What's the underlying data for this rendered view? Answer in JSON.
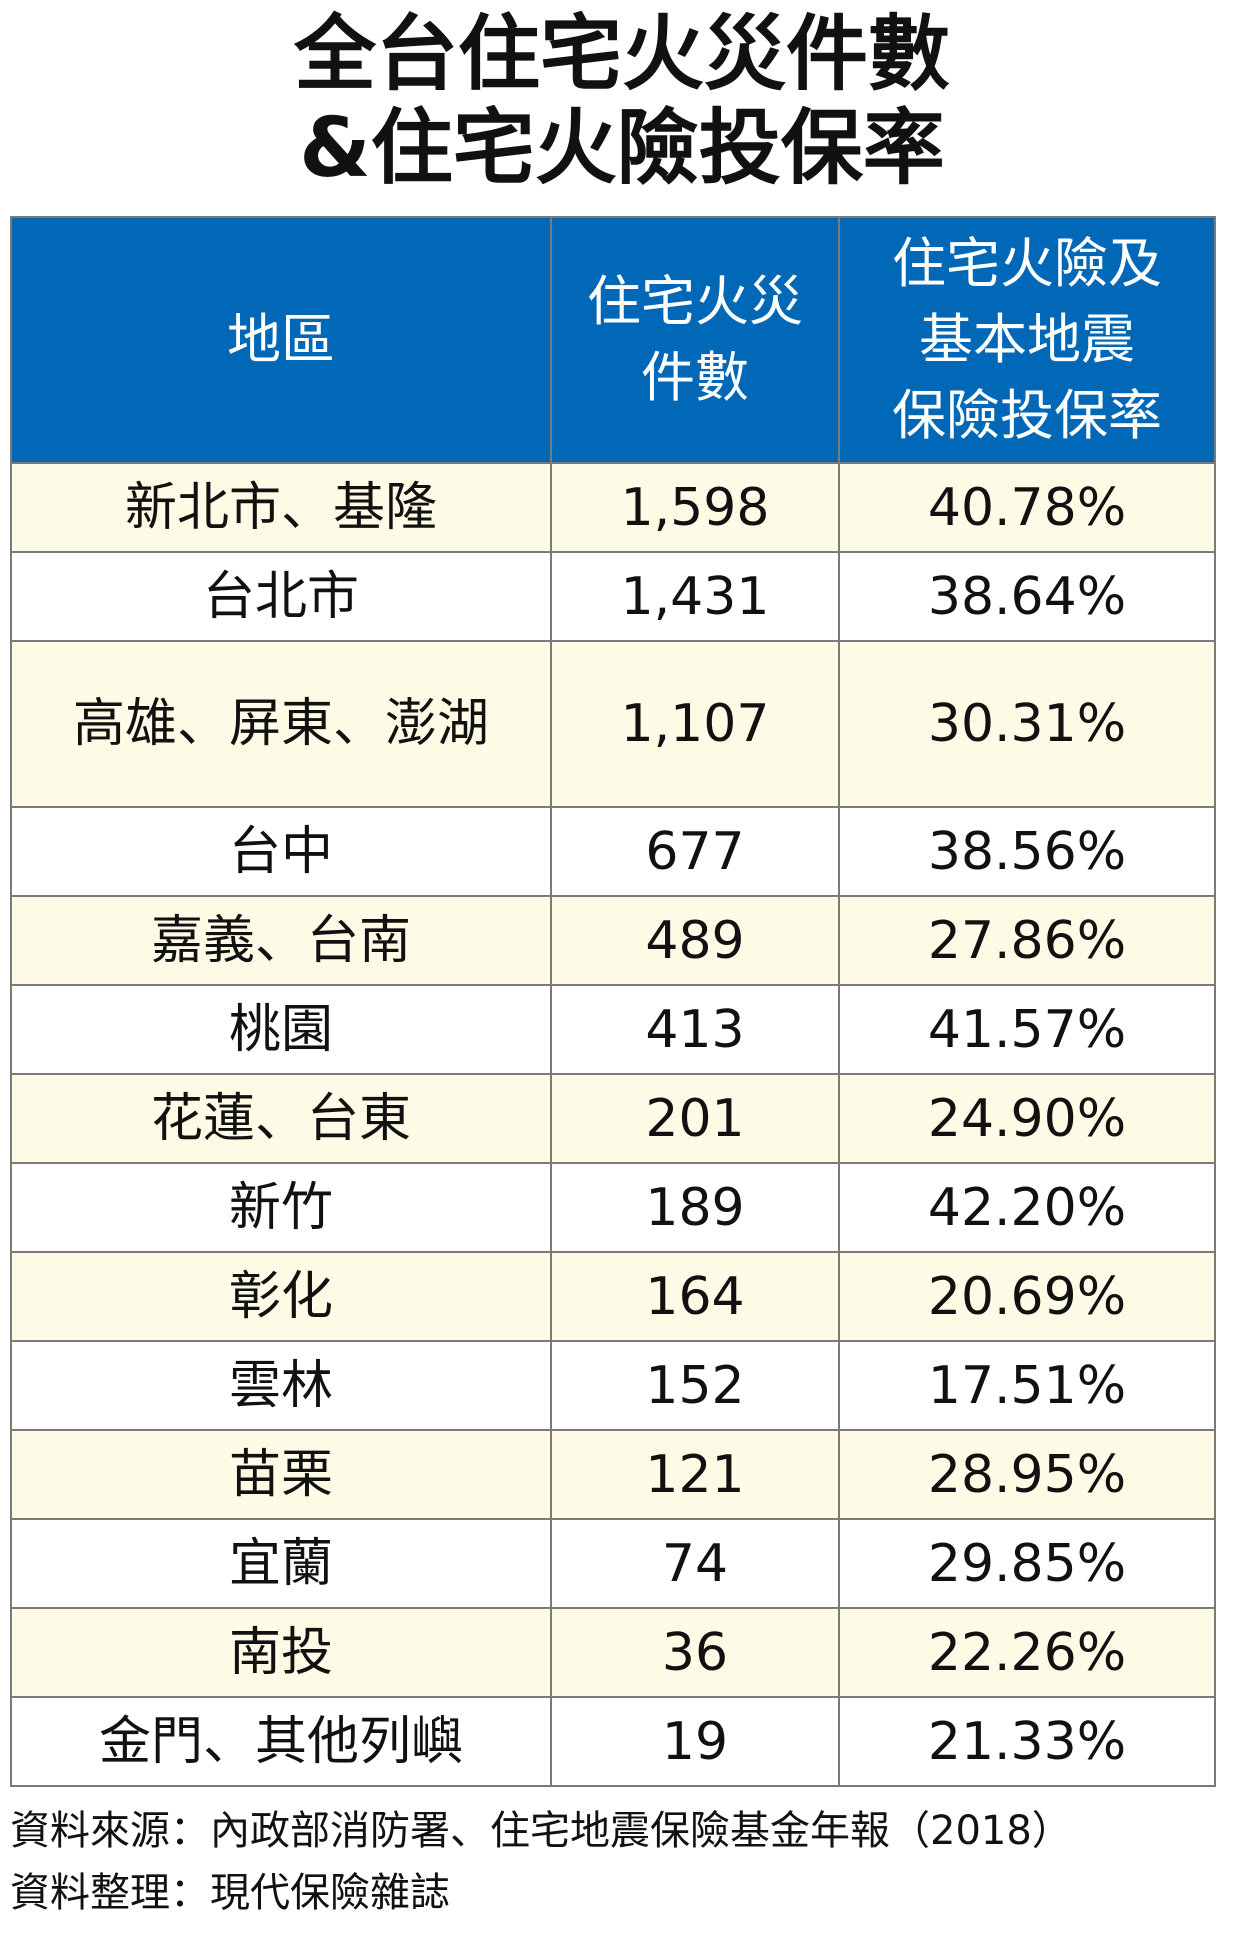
{
  "title": {
    "line1": "全台住宅火災件數",
    "line2": "&住宅火險投保率"
  },
  "table": {
    "headers": {
      "region": "地區",
      "fires_line1": "住宅火災",
      "fires_line2": "件數",
      "rate_line1": "住宅火險及",
      "rate_line2": "基本地震",
      "rate_line3": "保險投保率"
    },
    "rows": [
      {
        "region": "新北市、基隆",
        "fires": "1,598",
        "rate": "40.78%"
      },
      {
        "region": "台北市",
        "fires": "1,431",
        "rate": "38.64%"
      },
      {
        "region": "高雄、屏東、澎湖",
        "fires": "1,107",
        "rate": "30.31%"
      },
      {
        "region": "台中",
        "fires": "677",
        "rate": "38.56%"
      },
      {
        "region": "嘉義、台南",
        "fires": "489",
        "rate": "27.86%"
      },
      {
        "region": "桃園",
        "fires": "413",
        "rate": "41.57%"
      },
      {
        "region": "花蓮、台東",
        "fires": "201",
        "rate": "24.90%"
      },
      {
        "region": "新竹",
        "fires": "189",
        "rate": "42.20%"
      },
      {
        "region": "彰化",
        "fires": "164",
        "rate": "20.69%"
      },
      {
        "region": "雲林",
        "fires": "152",
        "rate": "17.51%"
      },
      {
        "region": "苗栗",
        "fires": "121",
        "rate": "28.95%"
      },
      {
        "region": "宜蘭",
        "fires": "74",
        "rate": "29.85%"
      },
      {
        "region": "南投",
        "fires": "36",
        "rate": "22.26%"
      },
      {
        "region": "金門、其他列嶼",
        "fires": "19",
        "rate": "21.33%"
      }
    ]
  },
  "footer": {
    "source": "資料來源：內政部消防署、住宅地震保險基金年報（2018）",
    "compiled": "資料整理：現代保險雜誌"
  },
  "colors": {
    "header_bg": "#0068b7",
    "header_text": "#ffffff",
    "row_alt_bg": "#fdfbe5",
    "row_bg": "#ffffff",
    "border": "#7a7a7a"
  },
  "chart_data": {
    "type": "table",
    "title": "全台住宅火災件數&住宅火險投保率",
    "columns": [
      "地區",
      "住宅火災件數",
      "住宅火險及基本地震保險投保率"
    ],
    "categories": [
      "新北市、基隆",
      "台北市",
      "高雄、屏東、澎湖",
      "台中",
      "嘉義、台南",
      "桃園",
      "花蓮、台東",
      "新竹",
      "彰化",
      "雲林",
      "苗栗",
      "宜蘭",
      "南投",
      "金門、其他列嶼"
    ],
    "series": [
      {
        "name": "住宅火災件數",
        "values": [
          1598,
          1431,
          1107,
          677,
          489,
          413,
          201,
          189,
          164,
          152,
          121,
          74,
          36,
          19
        ]
      },
      {
        "name": "住宅火險及基本地震保險投保率",
        "values": [
          40.78,
          38.64,
          30.31,
          38.56,
          27.86,
          41.57,
          24.9,
          42.2,
          20.69,
          17.51,
          28.95,
          29.85,
          22.26,
          21.33
        ]
      }
    ]
  }
}
